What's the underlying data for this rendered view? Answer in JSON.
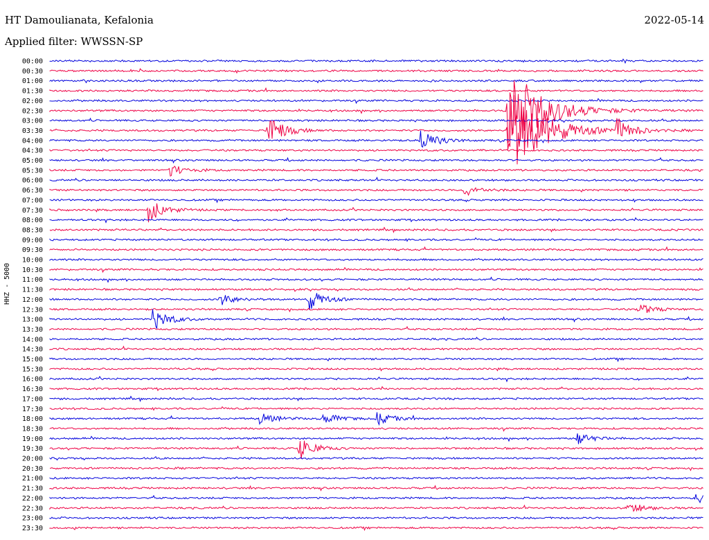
{
  "header": {
    "station": "HT Damoulianata, Kefalonia",
    "date": "2022-05-14",
    "filter": "Applied filter: WWSSN-SP"
  },
  "channel": "HHZ - 5000",
  "colors": {
    "trace_a": "#0000dd",
    "trace_b": "#ee0044",
    "background": "#ffffff",
    "text": "#000000"
  },
  "chart_data": {
    "type": "line",
    "title": "HT Damoulianata, Kefalonia",
    "subtitle": "Applied filter: WWSSN-SP",
    "ylabel": "HHZ - 5000",
    "row_interval_minutes": 30,
    "rows": [
      "00:00",
      "00:30",
      "01:00",
      "01:30",
      "02:00",
      "02:30",
      "03:00",
      "03:30",
      "04:00",
      "04:30",
      "05:00",
      "05:30",
      "06:00",
      "06:30",
      "07:00",
      "07:30",
      "08:00",
      "08:30",
      "09:00",
      "09:30",
      "10:00",
      "10:30",
      "11:00",
      "11:30",
      "12:00",
      "12:30",
      "13:00",
      "13:30",
      "14:00",
      "14:30",
      "15:00",
      "15:30",
      "16:00",
      "16:30",
      "17:00",
      "17:30",
      "18:00",
      "18:30",
      "19:00",
      "19:30",
      "20:00",
      "20:30",
      "21:00",
      "21:30",
      "22:00",
      "22:30",
      "23:00",
      "23:30"
    ],
    "row_colors": "alternating blue / red",
    "events": [
      {
        "row": "02:30",
        "minute_offset": 21.0,
        "magnitude": "large"
      },
      {
        "row": "03:30",
        "minute_offset": 21.0,
        "magnitude": "large"
      },
      {
        "row": "03:30",
        "minute_offset": 10.0,
        "magnitude": "medium"
      },
      {
        "row": "03:30",
        "minute_offset": 26.0,
        "magnitude": "medium"
      },
      {
        "row": "04:00",
        "minute_offset": 17.0,
        "magnitude": "medium"
      },
      {
        "row": "03:30",
        "minute_offset": 10.0,
        "magnitude": "small"
      },
      {
        "row": "05:30",
        "minute_offset": 5.5,
        "magnitude": "small"
      },
      {
        "row": "06:30",
        "minute_offset": 19.0,
        "magnitude": "small"
      },
      {
        "row": "07:30",
        "minute_offset": 4.5,
        "magnitude": "medium"
      },
      {
        "row": "12:00",
        "minute_offset": 11.8,
        "magnitude": "medium"
      },
      {
        "row": "12:00",
        "minute_offset": 7.8,
        "magnitude": "small"
      },
      {
        "row": "13:00",
        "minute_offset": 4.7,
        "magnitude": "medium"
      },
      {
        "row": "12:30",
        "minute_offset": 27.0,
        "magnitude": "small"
      },
      {
        "row": "18:00",
        "minute_offset": 9.6,
        "magnitude": "small"
      },
      {
        "row": "18:00",
        "minute_offset": 12.5,
        "magnitude": "small"
      },
      {
        "row": "18:00",
        "minute_offset": 15.0,
        "magnitude": "small"
      },
      {
        "row": "19:00",
        "minute_offset": 24.2,
        "magnitude": "small"
      },
      {
        "row": "19:30",
        "minute_offset": 11.4,
        "magnitude": "medium"
      },
      {
        "row": "22:30",
        "minute_offset": 26.5,
        "magnitude": "small"
      },
      {
        "row": "22:00",
        "minute_offset": 29.6,
        "magnitude": "small"
      }
    ]
  }
}
